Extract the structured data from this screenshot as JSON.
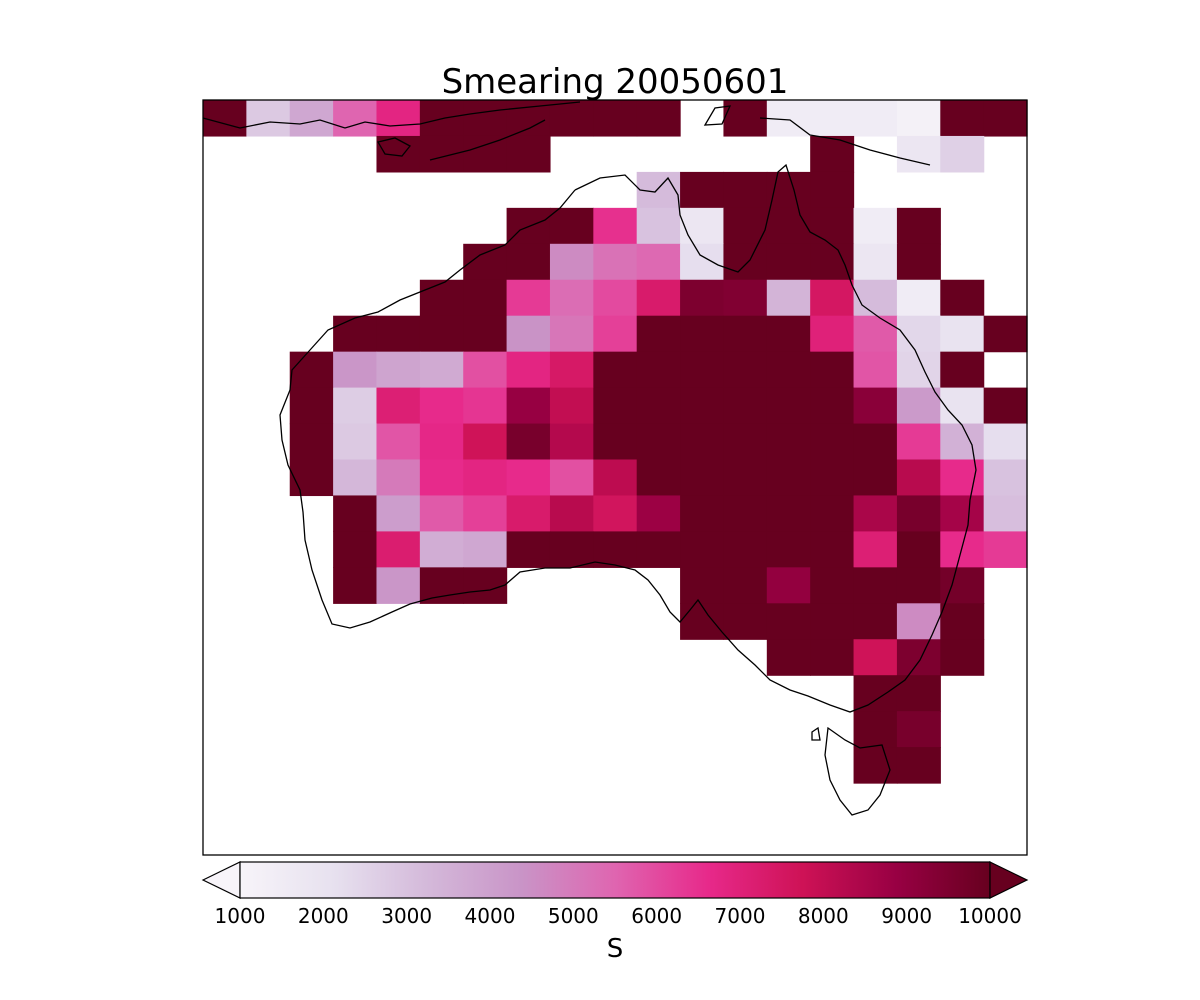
{
  "chart_data": {
    "type": "heatmap",
    "title": "Smearing 20050601",
    "colorbar": {
      "label": "S",
      "ticks": [
        "1000",
        "2000",
        "3000",
        "4000",
        "5000",
        "6000",
        "7000",
        "8000",
        "9000",
        "10000"
      ],
      "range": [
        1000,
        10000
      ],
      "extend": "both",
      "colors": [
        "#f7f4f9",
        "#e7e1ef",
        "#d4b9da",
        "#c994c7",
        "#df65b0",
        "#e7298a",
        "#ce1256",
        "#980043",
        "#67001f"
      ]
    },
    "grid": {
      "rows": 21,
      "cols": 19
    },
    "cells": [
      [
        0,
        0,
        10000
      ],
      [
        0,
        1,
        2800
      ],
      [
        0,
        2,
        3800
      ],
      [
        0,
        3,
        5500
      ],
      [
        0,
        4,
        6800
      ],
      [
        0,
        5,
        10000
      ],
      [
        0,
        6,
        10000
      ],
      [
        0,
        7,
        10000
      ],
      [
        0,
        8,
        10000
      ],
      [
        0,
        9,
        10000
      ],
      [
        0,
        10,
        10000
      ],
      [
        0,
        12,
        10000
      ],
      [
        0,
        13,
        1500
      ],
      [
        0,
        14,
        1500
      ],
      [
        0,
        15,
        1500
      ],
      [
        0,
        16,
        1200
      ],
      [
        0,
        17,
        10000
      ],
      [
        0,
        18,
        10000
      ],
      [
        1,
        4,
        10000
      ],
      [
        1,
        5,
        10000
      ],
      [
        1,
        6,
        10000
      ],
      [
        1,
        7,
        10000
      ],
      [
        1,
        14,
        10000
      ],
      [
        1,
        16,
        1800
      ],
      [
        1,
        17,
        2600
      ],
      [
        2,
        10,
        3200
      ],
      [
        2,
        11,
        10000
      ],
      [
        2,
        12,
        10000
      ],
      [
        2,
        13,
        10000
      ],
      [
        2,
        14,
        10000
      ],
      [
        3,
        7,
        10000
      ],
      [
        3,
        8,
        10000
      ],
      [
        3,
        9,
        6500
      ],
      [
        3,
        10,
        3000
      ],
      [
        3,
        11,
        1800
      ],
      [
        3,
        12,
        10000
      ],
      [
        3,
        13,
        10000
      ],
      [
        3,
        14,
        10000
      ],
      [
        3,
        15,
        1500
      ],
      [
        3,
        16,
        10000
      ],
      [
        4,
        6,
        10000
      ],
      [
        4,
        7,
        10000
      ],
      [
        4,
        8,
        4600
      ],
      [
        4,
        9,
        5200
      ],
      [
        4,
        10,
        5400
      ],
      [
        4,
        11,
        2200
      ],
      [
        4,
        12,
        10000
      ],
      [
        4,
        13,
        10000
      ],
      [
        4,
        14,
        10000
      ],
      [
        4,
        15,
        1800
      ],
      [
        4,
        16,
        10000
      ],
      [
        5,
        5,
        10000
      ],
      [
        5,
        6,
        10000
      ],
      [
        5,
        7,
        6300
      ],
      [
        5,
        8,
        5300
      ],
      [
        5,
        9,
        6000
      ],
      [
        5,
        10,
        7300
      ],
      [
        5,
        11,
        9500
      ],
      [
        5,
        12,
        9400
      ],
      [
        5,
        13,
        3400
      ],
      [
        5,
        14,
        7500
      ],
      [
        5,
        15,
        3200
      ],
      [
        5,
        16,
        1500
      ],
      [
        5,
        17,
        10000
      ],
      [
        6,
        3,
        10000
      ],
      [
        6,
        4,
        10000
      ],
      [
        6,
        5,
        10000
      ],
      [
        6,
        6,
        10000
      ],
      [
        6,
        7,
        4400
      ],
      [
        6,
        8,
        5100
      ],
      [
        6,
        9,
        6200
      ],
      [
        6,
        10,
        10000
      ],
      [
        6,
        11,
        10000
      ],
      [
        6,
        12,
        10000
      ],
      [
        6,
        13,
        10000
      ],
      [
        6,
        14,
        7000
      ],
      [
        6,
        15,
        5700
      ],
      [
        6,
        16,
        2400
      ],
      [
        6,
        17,
        2000
      ],
      [
        6,
        18,
        10000
      ],
      [
        7,
        2,
        10000
      ],
      [
        7,
        3,
        4300
      ],
      [
        7,
        4,
        3900
      ],
      [
        7,
        5,
        3700
      ],
      [
        7,
        6,
        5900
      ],
      [
        7,
        7,
        6800
      ],
      [
        7,
        8,
        7400
      ],
      [
        7,
        9,
        10000
      ],
      [
        7,
        10,
        10000
      ],
      [
        7,
        11,
        10000
      ],
      [
        7,
        12,
        10000
      ],
      [
        7,
        13,
        10000
      ],
      [
        7,
        14,
        10000
      ],
      [
        7,
        15,
        5800
      ],
      [
        7,
        16,
        2500
      ],
      [
        7,
        17,
        10000
      ],
      [
        8,
        2,
        10000
      ],
      [
        8,
        3,
        2700
      ],
      [
        8,
        4,
        7100
      ],
      [
        8,
        5,
        6600
      ],
      [
        8,
        6,
        6400
      ],
      [
        8,
        7,
        8900
      ],
      [
        8,
        8,
        8000
      ],
      [
        8,
        9,
        10000
      ],
      [
        8,
        10,
        10000
      ],
      [
        8,
        11,
        10000
      ],
      [
        8,
        12,
        10000
      ],
      [
        8,
        13,
        10000
      ],
      [
        8,
        14,
        10000
      ],
      [
        8,
        15,
        9200
      ],
      [
        8,
        16,
        4200
      ],
      [
        8,
        17,
        2000
      ],
      [
        8,
        18,
        10000
      ],
      [
        9,
        2,
        10000
      ],
      [
        9,
        3,
        2800
      ],
      [
        9,
        4,
        5800
      ],
      [
        9,
        5,
        6700
      ],
      [
        9,
        6,
        7700
      ],
      [
        9,
        7,
        9600
      ],
      [
        9,
        8,
        8300
      ],
      [
        9,
        9,
        10000
      ],
      [
        9,
        10,
        10000
      ],
      [
        9,
        11,
        10000
      ],
      [
        9,
        12,
        10000
      ],
      [
        9,
        13,
        10000
      ],
      [
        9,
        14,
        10000
      ],
      [
        9,
        15,
        10000
      ],
      [
        9,
        16,
        6300
      ],
      [
        9,
        17,
        3500
      ],
      [
        9,
        18,
        2200
      ],
      [
        10,
        2,
        10000
      ],
      [
        10,
        3,
        3300
      ],
      [
        10,
        4,
        5000
      ],
      [
        10,
        5,
        6600
      ],
      [
        10,
        6,
        6800
      ],
      [
        10,
        7,
        6600
      ],
      [
        10,
        8,
        5900
      ],
      [
        10,
        9,
        8100
      ],
      [
        10,
        10,
        10000
      ],
      [
        10,
        11,
        10000
      ],
      [
        10,
        12,
        10000
      ],
      [
        10,
        13,
        10000
      ],
      [
        10,
        14,
        10000
      ],
      [
        10,
        15,
        10000
      ],
      [
        10,
        16,
        8200
      ],
      [
        10,
        17,
        6600
      ],
      [
        10,
        18,
        3000
      ],
      [
        11,
        3,
        10000
      ],
      [
        11,
        4,
        4100
      ],
      [
        11,
        5,
        5700
      ],
      [
        11,
        6,
        6200
      ],
      [
        11,
        7,
        7300
      ],
      [
        11,
        8,
        8200
      ],
      [
        11,
        9,
        7600
      ],
      [
        11,
        10,
        8800
      ],
      [
        11,
        11,
        10000
      ],
      [
        11,
        12,
        10000
      ],
      [
        11,
        13,
        10000
      ],
      [
        11,
        14,
        10000
      ],
      [
        11,
        15,
        8500
      ],
      [
        11,
        16,
        9600
      ],
      [
        11,
        17,
        8600
      ],
      [
        11,
        18,
        3100
      ],
      [
        12,
        3,
        10000
      ],
      [
        12,
        4,
        7200
      ],
      [
        12,
        5,
        3600
      ],
      [
        12,
        6,
        3800
      ],
      [
        12,
        7,
        10000
      ],
      [
        12,
        8,
        10000
      ],
      [
        12,
        9,
        10000
      ],
      [
        12,
        10,
        10000
      ],
      [
        12,
        11,
        10000
      ],
      [
        12,
        12,
        10000
      ],
      [
        12,
        13,
        10000
      ],
      [
        12,
        14,
        10000
      ],
      [
        12,
        15,
        7100
      ],
      [
        12,
        16,
        10000
      ],
      [
        12,
        17,
        6600
      ],
      [
        12,
        18,
        6300
      ],
      [
        13,
        3,
        10000
      ],
      [
        13,
        4,
        4300
      ],
      [
        13,
        5,
        10000
      ],
      [
        13,
        6,
        10000
      ],
      [
        13,
        11,
        10000
      ],
      [
        13,
        12,
        10000
      ],
      [
        13,
        13,
        9000
      ],
      [
        13,
        14,
        10000
      ],
      [
        13,
        15,
        10000
      ],
      [
        13,
        16,
        10000
      ],
      [
        13,
        17,
        9700
      ],
      [
        14,
        11,
        10000
      ],
      [
        14,
        12,
        10000
      ],
      [
        14,
        13,
        10000
      ],
      [
        14,
        14,
        10000
      ],
      [
        14,
        15,
        10000
      ],
      [
        14,
        16,
        4600
      ],
      [
        14,
        17,
        10000
      ],
      [
        15,
        13,
        10000
      ],
      [
        15,
        14,
        10000
      ],
      [
        15,
        15,
        7700
      ],
      [
        15,
        16,
        9500
      ],
      [
        15,
        17,
        10000
      ],
      [
        16,
        15,
        10000
      ],
      [
        16,
        16,
        10000
      ],
      [
        17,
        15,
        10000
      ],
      [
        17,
        16,
        9600
      ],
      [
        18,
        15,
        10000
      ],
      [
        18,
        16,
        10000
      ]
    ]
  }
}
